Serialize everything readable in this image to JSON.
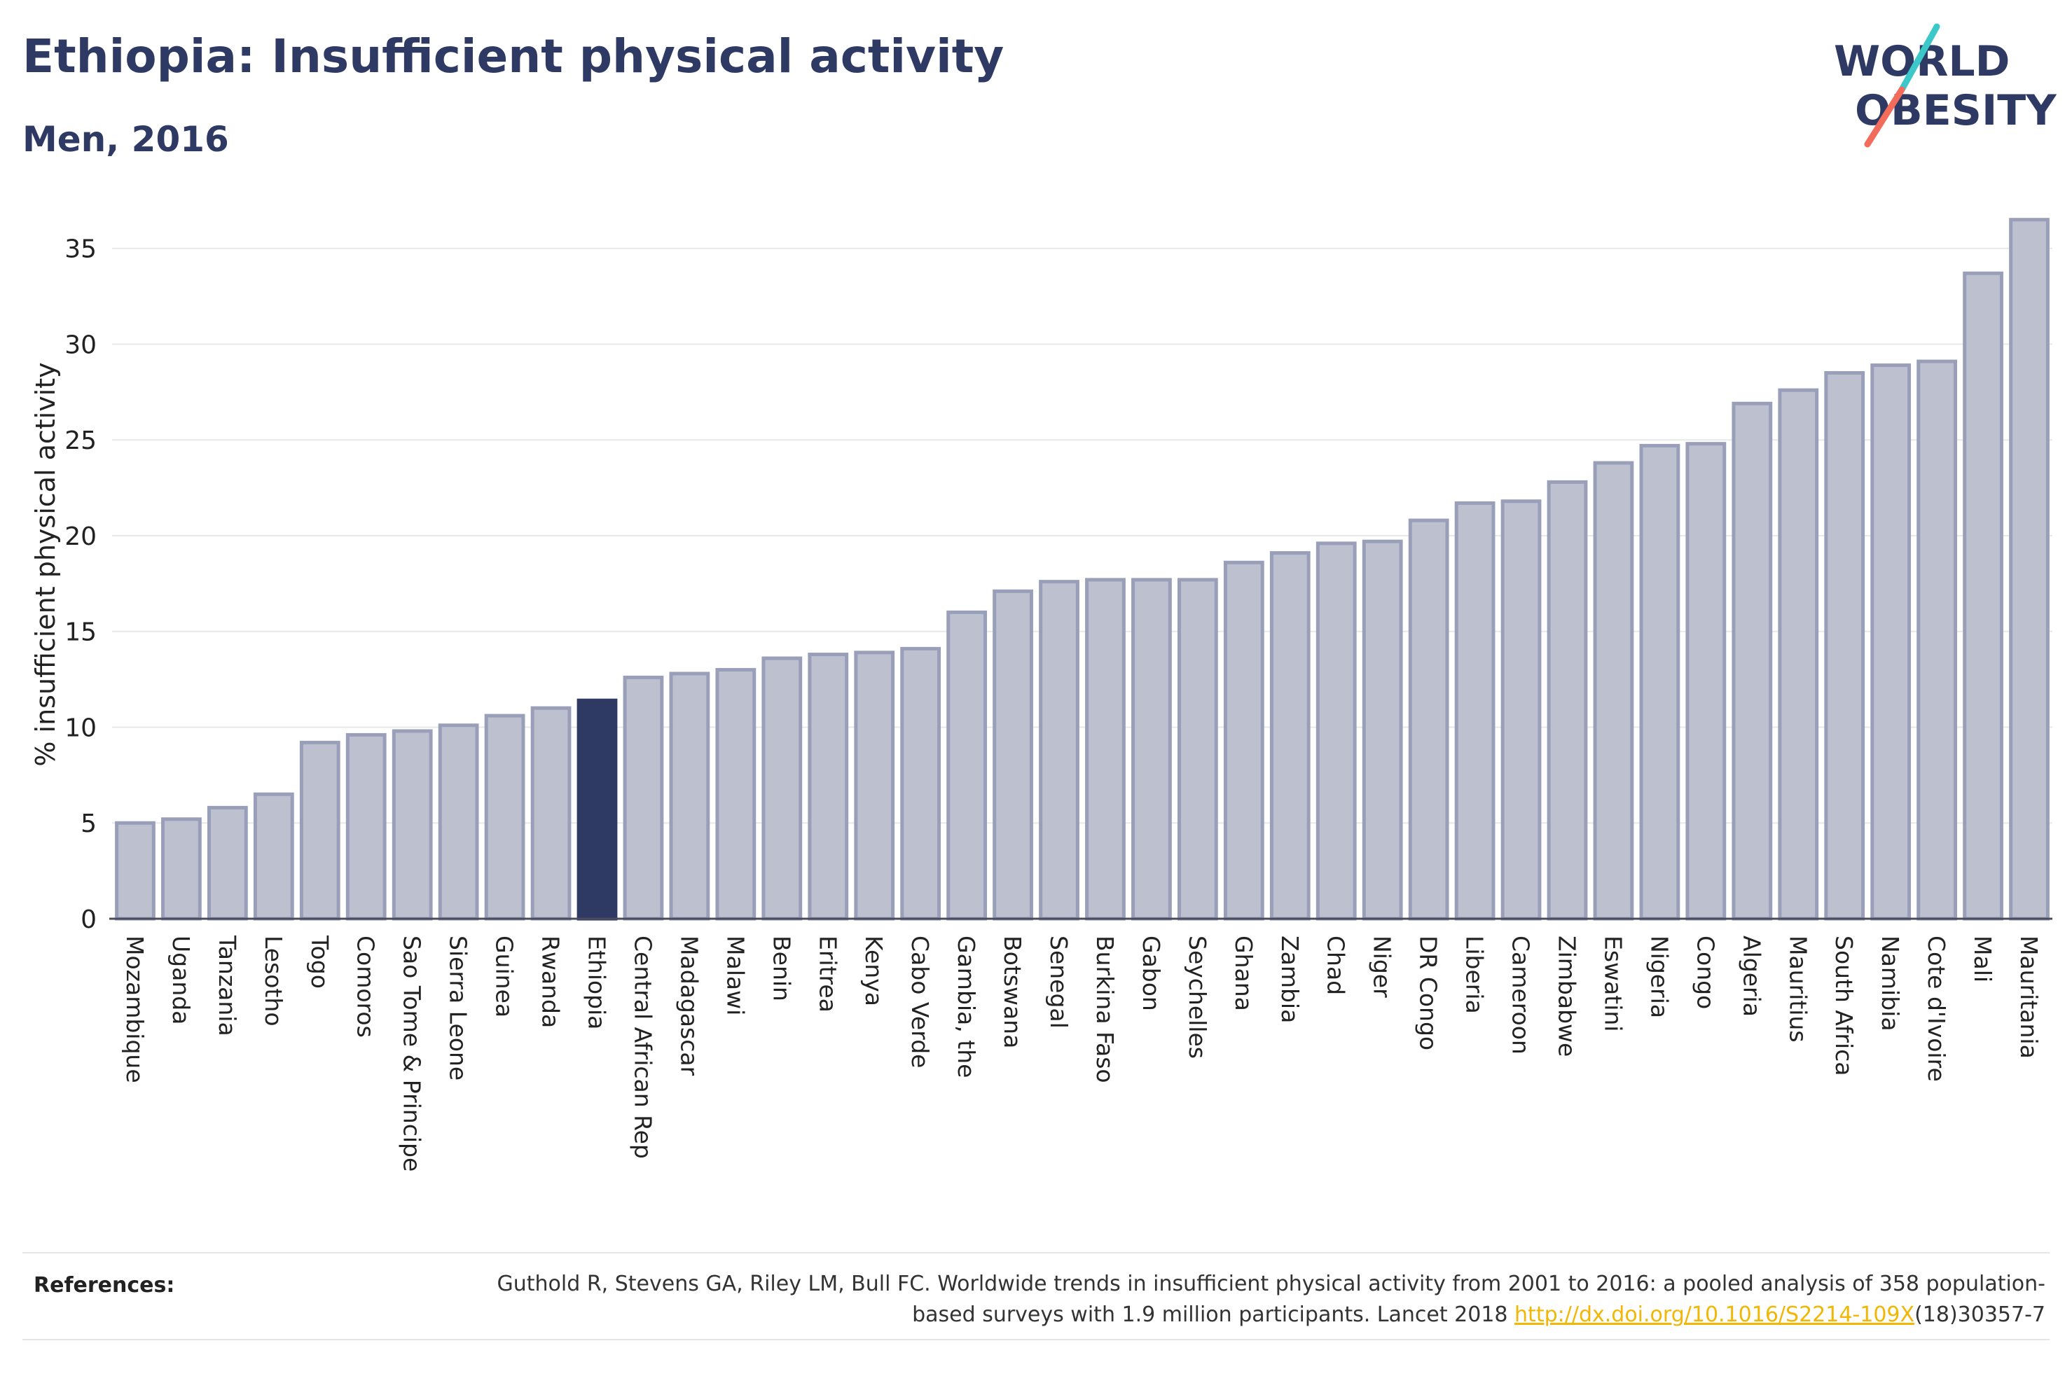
{
  "header": {
    "title": "Ethiopia: Insufficient physical activity",
    "subtitle": "Men, 2016"
  },
  "logo": {
    "line1": "WORLD",
    "line2": "OBESITY",
    "colors": {
      "text": "#2e3a63",
      "slash_top": "#3cc8c8",
      "slash_bottom": "#f26b5b"
    }
  },
  "colors": {
    "bar_fill": "#bcc0cf",
    "bar_stroke": "#9a9fb9",
    "highlight": "#2e3a63",
    "grid": "#e8e8e8",
    "axis": "#4b4b5e",
    "text": "#222222"
  },
  "chart_data": {
    "type": "bar",
    "title": "Ethiopia: Insufficient physical activity",
    "subtitle": "Men, 2016",
    "xlabel": "",
    "ylabel": "% insufficient physical activity",
    "ylim": [
      0,
      37
    ],
    "yticks": [
      0,
      5,
      10,
      15,
      20,
      25,
      30,
      35
    ],
    "grid": true,
    "highlight": "Ethiopia",
    "categories": [
      "Mozambique",
      "Uganda",
      "Tanzania",
      "Lesotho",
      "Togo",
      "Comoros",
      "Sao Tome & Principe",
      "Sierra Leone",
      "Guinea",
      "Rwanda",
      "Ethiopia",
      "Central African Rep",
      "Madagascar",
      "Malawi",
      "Benin",
      "Eritrea",
      "Kenya",
      "Cabo Verde",
      "Gambia, the",
      "Botswana",
      "Senegal",
      "Burkina Faso",
      "Gabon",
      "Seychelles",
      "Ghana",
      "Zambia",
      "Chad",
      "Niger",
      "DR Congo",
      "Liberia",
      "Cameroon",
      "Zimbabwe",
      "Eswatini",
      "Nigeria",
      "Congo",
      "Algeria",
      "Mauritius",
      "South Africa",
      "Namibia",
      "Cote d'Ivoire",
      "Mali",
      "Mauritania"
    ],
    "values": [
      5.0,
      5.2,
      5.8,
      6.5,
      9.2,
      9.6,
      9.8,
      10.1,
      10.6,
      11.0,
      11.4,
      12.6,
      12.8,
      13.0,
      13.6,
      13.8,
      13.9,
      14.1,
      16.0,
      17.1,
      17.6,
      17.7,
      17.7,
      17.7,
      18.6,
      19.1,
      19.6,
      19.7,
      20.8,
      21.7,
      21.8,
      22.8,
      23.8,
      24.7,
      24.8,
      26.9,
      27.6,
      28.5,
      28.9,
      29.1,
      33.7,
      36.5
    ]
  },
  "references": {
    "label": "References:",
    "text_before": "Guthold R, Stevens GA, Riley LM, Bull FC. Worldwide trends in insufficient physical activity from 2001 to 2016: a pooled analysis of 358 population-based surveys with 1.9 million participants. Lancet 2018 ",
    "link": "http://dx.doi.org/10.1016/S2214-109X",
    "text_after": "(18)30357-7"
  }
}
